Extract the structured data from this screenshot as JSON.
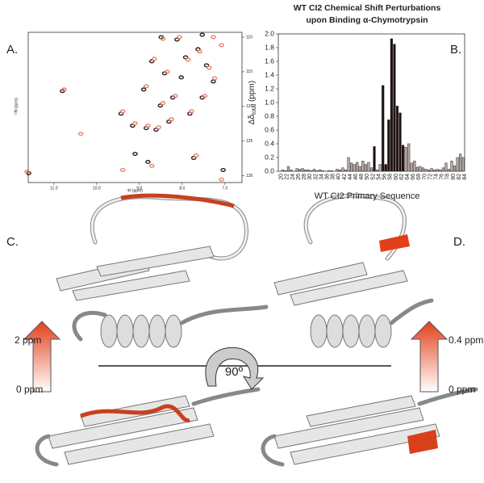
{
  "panels": [
    "A.",
    "B.",
    "C.",
    "D."
  ],
  "scales": {
    "left_top": "2 ppm",
    "left_bottom": "0 ppm",
    "right_top": "0.4 ppm",
    "right_bottom": "0 ppm",
    "rotation": "90º"
  },
  "chart_data": [
    {
      "type": "scatter",
      "xlabel": "¹H (ppm)",
      "ylabel": "¹⁵N (ppm)",
      "xlim": [
        11.6,
        6.6
      ],
      "ylim": [
        109.3,
        131
      ],
      "xticks": [
        {
          "value": 11,
          "label": "11.0"
        },
        {
          "value": 10,
          "label": "10.0"
        },
        {
          "value": 9,
          "label": "9.0"
        },
        {
          "value": 8,
          "label": "8.0"
        },
        {
          "value": 7,
          "label": "7.0"
        }
      ],
      "yticks": [
        110,
        115,
        120,
        125,
        130
      ],
      "series": [
        {
          "color": "#2b1b1b",
          "x": [
            11.59,
            10.8,
            9.43,
            9.16,
            8.84,
            8.49,
            8.12,
            7.53,
            8.71,
            8.41,
            7.92,
            7.63,
            7.43,
            8.9,
            8.51,
            8.22,
            7.82,
            7.53,
            7.27,
            8.61,
            8.31,
            8.02,
            9.1,
            8.8,
            7.73,
            7.04
          ],
          "y": [
            129.65,
            117.79,
            121.05,
            122.79,
            123.14,
            110.0,
            110.35,
            109.65,
            113.49,
            115.23,
            112.91,
            111.74,
            114.07,
            117.56,
            119.88,
            118.72,
            121.05,
            118.72,
            116.4,
            123.37,
            122.21,
            115.81,
            126.86,
            128.02,
            127.44,
            129.19
          ]
        },
        {
          "color": "#e8806a",
          "x": [
            11.63,
            10.76,
            10.37,
            9.39,
            9.1,
            8.8,
            8.45,
            8.06,
            7.27,
            7.08,
            8.65,
            8.35,
            7.86,
            7.59,
            7.37,
            8.84,
            8.45,
            8.16,
            7.78,
            7.47,
            7.24,
            8.55,
            8.25,
            9.39,
            8.71,
            7.67,
            7.08
          ],
          "y": [
            129.42,
            117.56,
            123.95,
            120.7,
            122.44,
            122.79,
            110.23,
            110.0,
            110.0,
            111.16,
            113.14,
            115.0,
            113.26,
            112.09,
            114.42,
            117.09,
            119.53,
            118.49,
            120.7,
            118.49,
            115.93,
            123.02,
            121.86,
            129.19,
            128.6,
            127.09,
            130.58
          ]
        }
      ]
    },
    {
      "type": "bar",
      "title": [
        "WT CI2 Chemical Shift Perturbations",
        "upon Binding α-Chymotrypsin"
      ],
      "ylabel": [
        "Δδ",
        "total",
        " (ppm)"
      ],
      "xlabel": "WT CI2 Primary Sequence",
      "ylim": [
        0,
        2.0
      ],
      "yticks": [
        {
          "value": 0,
          "label": "0.0"
        },
        {
          "value": 0.2,
          "label": "0.2"
        },
        {
          "value": 0.4,
          "label": "0.4"
        },
        {
          "value": 0.6,
          "label": "0.6"
        },
        {
          "value": 0.8,
          "label": "0.8"
        },
        {
          "value": 1,
          "label": "1.0"
        },
        {
          "value": 1.2,
          "label": "1.2"
        },
        {
          "value": 1.4,
          "label": "1.4"
        },
        {
          "value": 1.6,
          "label": "1.6"
        },
        {
          "value": 1.8,
          "label": "1.8"
        },
        {
          "value": 2,
          "label": "2.0"
        }
      ],
      "categories": [
        20,
        null,
        22,
        null,
        24,
        null,
        26,
        null,
        28,
        null,
        30,
        null,
        32,
        null,
        34,
        null,
        36,
        null,
        38,
        null,
        40,
        null,
        42,
        null,
        44,
        null,
        46,
        null,
        48,
        null,
        50,
        null,
        52,
        null,
        54,
        null,
        56,
        null,
        58,
        null,
        60,
        null,
        62,
        null,
        64,
        null,
        66,
        null,
        68,
        null,
        70,
        null,
        72,
        null,
        74,
        null,
        76,
        null,
        78,
        null,
        80,
        null,
        82,
        null,
        84
      ],
      "values": [
        0,
        0.02,
        0.01,
        0.07,
        0.02,
        0,
        0.04,
        0.03,
        0.04,
        0.02,
        0.02,
        0.01,
        0.03,
        0.01,
        0.02,
        0.01,
        0,
        0.01,
        0.01,
        0,
        0.03,
        0.02,
        0.05,
        0.02,
        0.2,
        0.12,
        0.1,
        0.13,
        0.07,
        0.15,
        0.1,
        0.13,
        0.05,
        0.36,
        0.02,
        0.1,
        1.25,
        0.1,
        0.75,
        1.93,
        1.85,
        0.95,
        0.85,
        0.38,
        0.35,
        0.4,
        0.12,
        0.15,
        0.06,
        0.07,
        0.05,
        0.03,
        0.02,
        0.04,
        0.02,
        0.03,
        0.02,
        0.05,
        0.12,
        0.03,
        0.15,
        0.08,
        0.2,
        0.25,
        0.2
      ],
      "colors": [
        "#b3a9a9",
        "#b3a9a9",
        "#b3a9a9",
        "#b3a9a9",
        "#b3a9a9",
        "#b3a9a9",
        "#b3a9a9",
        "#b3a9a9",
        "#b3a9a9",
        "#b3a9a9",
        "#b3a9a9",
        "#b3a9a9",
        "#b3a9a9",
        "#b3a9a9",
        "#b3a9a9",
        "#b3a9a9",
        "#b3a9a9",
        "#b3a9a9",
        "#b3a9a9",
        "#b3a9a9",
        "#b3a9a9",
        "#b3a9a9",
        "#b3a9a9",
        "#b3a9a9",
        "#b3a9a9",
        "#b3a9a9",
        "#b3a9a9",
        "#b3a9a9",
        "#b3a9a9",
        "#b3a9a9",
        "#b3a9a9",
        "#b3a9a9",
        "#b3a9a9",
        "#1a0f0f",
        "#b3a9a9",
        "#b3a9a9",
        "#1a0f0f",
        "#1a0f0f",
        "#1a0f0f",
        "#1a0f0f",
        "#1a0f0f",
        "#1a0f0f",
        "#1a0f0f",
        "#1a0f0f",
        "#b3a9a9",
        "#b3a9a9",
        "#b3a9a9",
        "#b3a9a9",
        "#b3a9a9",
        "#b3a9a9",
        "#b3a9a9",
        "#b3a9a9",
        "#b3a9a9",
        "#b3a9a9",
        "#b3a9a9",
        "#b3a9a9",
        "#b3a9a9",
        "#b3a9a9",
        "#b3a9a9",
        "#b3a9a9",
        "#b3a9a9",
        "#b3a9a9",
        "#b3a9a9",
        "#b3a9a9",
        "#b3a9a9"
      ]
    }
  ]
}
